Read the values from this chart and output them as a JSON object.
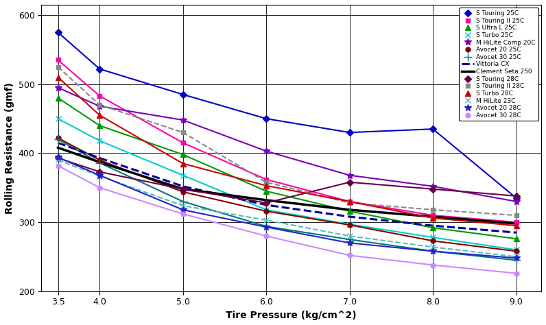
{
  "xlabel": "Tire Pressure (kg/cm^2)",
  "ylabel": "Rolling Resistance (gmf)",
  "xlim": [
    3.3,
    9.3
  ],
  "ylim": [
    200,
    615
  ],
  "yticks": [
    200,
    300,
    400,
    500,
    600
  ],
  "xticks": [
    3.5,
    4,
    5,
    6,
    7,
    8,
    9
  ],
  "series": [
    {
      "label": "S Touring 25C",
      "color": "#0000CC",
      "marker": "D",
      "markersize": 5,
      "linestyle": "-",
      "x": [
        3.5,
        4.0,
        5.0,
        6.0,
        7.0,
        8.0,
        9.0
      ],
      "y": [
        575,
        522,
        485,
        450,
        430,
        435,
        335
      ]
    },
    {
      "label": "S Touring II 25C",
      "color": "#FF00AA",
      "marker": "s",
      "markersize": 5,
      "linestyle": "-",
      "x": [
        3.5,
        4.0,
        5.0,
        6.0,
        7.0,
        8.0,
        9.0
      ],
      "y": [
        535,
        483,
        415,
        362,
        330,
        310,
        300
      ]
    },
    {
      "label": "S Ultra L 25C",
      "color": "#009900",
      "marker": "^",
      "markersize": 6,
      "linestyle": "-",
      "x": [
        3.5,
        4.0,
        5.0,
        6.0,
        7.0,
        8.0,
        9.0
      ],
      "y": [
        480,
        440,
        398,
        345,
        316,
        292,
        276
      ]
    },
    {
      "label": "S Turbo 25C",
      "color": "#00CCCC",
      "marker": "x",
      "markersize": 6,
      "linestyle": "-",
      "x": [
        3.5,
        4.0,
        5.0,
        6.0,
        7.0,
        8.0,
        9.0
      ],
      "y": [
        450,
        418,
        368,
        318,
        297,
        278,
        260
      ]
    },
    {
      "label": "M HiLite Comp 20C",
      "color": "#7700BB",
      "marker": "*",
      "markersize": 7,
      "linestyle": "-",
      "x": [
        3.5,
        4.0,
        5.0,
        6.0,
        7.0,
        8.0,
        9.0
      ],
      "y": [
        495,
        468,
        448,
        403,
        368,
        352,
        330
      ]
    },
    {
      "label": "Avocet 20 25C",
      "color": "#880000",
      "marker": "o",
      "markersize": 5,
      "linestyle": "-",
      "x": [
        3.5,
        4.0,
        5.0,
        6.0,
        7.0,
        8.0,
        9.0
      ],
      "y": [
        422,
        390,
        344,
        316,
        296,
        273,
        258
      ]
    },
    {
      "label": "Avocet 30 25C",
      "color": "#007777",
      "marker": "+",
      "markersize": 8,
      "linestyle": "-",
      "x": [
        3.5,
        4.0,
        5.0,
        6.0,
        7.0,
        8.0,
        9.0
      ],
      "y": [
        420,
        386,
        330,
        294,
        275,
        258,
        245
      ]
    },
    {
      "label": "Vittoria CX",
      "color": "#000099",
      "marker": "None",
      "markersize": 0,
      "linestyle": "--",
      "linewidth": 2.2,
      "x": [
        3.5,
        4.0,
        5.0,
        6.0,
        7.0,
        8.0,
        9.0
      ],
      "y": [
        415,
        393,
        352,
        325,
        308,
        295,
        285
      ]
    },
    {
      "label": "Clement Seta 250",
      "color": "#000000",
      "marker": "None",
      "markersize": 0,
      "linestyle": "-",
      "linewidth": 2.5,
      "x": [
        3.5,
        4.0,
        5.0,
        6.0,
        7.0,
        8.0,
        9.0
      ],
      "y": [
        408,
        387,
        348,
        332,
        318,
        308,
        298
      ]
    },
    {
      "label": "S Touring 28C",
      "color": "#660044",
      "marker": "D",
      "markersize": 5,
      "linestyle": "-",
      "x": [
        3.5,
        4.0,
        5.0,
        6.0,
        7.0,
        8.0,
        9.0
      ],
      "y": [
        393,
        373,
        348,
        328,
        358,
        348,
        338
      ]
    },
    {
      "label": "S Touring II 28C",
      "color": "#888888",
      "marker": "s",
      "markersize": 5,
      "linestyle": "--",
      "x": [
        3.5,
        4.0,
        5.0,
        6.0,
        7.0,
        8.0,
        9.0
      ],
      "y": [
        525,
        470,
        430,
        358,
        328,
        318,
        310
      ]
    },
    {
      "label": "S Turbo 28C",
      "color": "#CC0000",
      "marker": "^",
      "markersize": 6,
      "linestyle": "-",
      "x": [
        3.5,
        4.0,
        5.0,
        6.0,
        7.0,
        8.0,
        9.0
      ],
      "y": [
        510,
        455,
        385,
        353,
        330,
        306,
        295
      ]
    },
    {
      "label": "M HiLite 23C",
      "color": "#55BBBB",
      "marker": "x",
      "markersize": 6,
      "linestyle": "--",
      "x": [
        3.5,
        4.0,
        5.0,
        6.0,
        7.0,
        8.0,
        9.0
      ],
      "y": [
        390,
        367,
        324,
        303,
        280,
        264,
        250
      ]
    },
    {
      "label": "Avocet 20 28C",
      "color": "#2222CC",
      "marker": "*",
      "markersize": 7,
      "linestyle": "-",
      "x": [
        3.5,
        4.0,
        5.0,
        6.0,
        7.0,
        8.0,
        9.0
      ],
      "y": [
        394,
        368,
        318,
        293,
        270,
        258,
        248
      ]
    },
    {
      "label": "Avocet 30 28C",
      "color": "#CC88FF",
      "marker": "o",
      "markersize": 5,
      "linestyle": "-",
      "x": [
        3.5,
        4.0,
        5.0,
        6.0,
        7.0,
        8.0,
        9.0
      ],
      "y": [
        382,
        350,
        312,
        280,
        252,
        238,
        226
      ]
    }
  ]
}
